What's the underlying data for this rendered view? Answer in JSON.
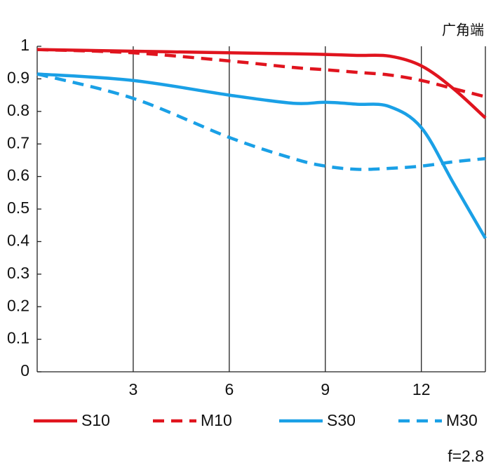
{
  "chart_data": {
    "type": "line",
    "title": "广角端",
    "note": "f=2.8",
    "x": [
      0,
      3,
      6,
      8,
      9,
      10,
      11,
      12,
      13,
      14
    ],
    "series": [
      {
        "name": "S10",
        "color": "#e0141e",
        "dashed": false,
        "values": [
          0.99,
          0.985,
          0.98,
          0.977,
          0.975,
          0.972,
          0.97,
          0.94,
          0.87,
          0.78
        ]
      },
      {
        "name": "M10",
        "color": "#e0141e",
        "dashed": true,
        "values": [
          0.99,
          0.98,
          0.955,
          0.935,
          0.928,
          0.92,
          0.912,
          0.895,
          0.87,
          0.845
        ]
      },
      {
        "name": "S30",
        "color": "#1aa0e6",
        "dashed": false,
        "values": [
          0.915,
          0.895,
          0.85,
          0.825,
          0.828,
          0.822,
          0.815,
          0.75,
          0.58,
          0.41
        ]
      },
      {
        "name": "M30",
        "color": "#1aa0e6",
        "dashed": true,
        "values": [
          0.915,
          0.84,
          0.72,
          0.655,
          0.632,
          0.622,
          0.625,
          0.632,
          0.645,
          0.655
        ]
      }
    ],
    "xlim": [
      0,
      14
    ],
    "xticks": [
      3,
      6,
      9,
      12
    ],
    "ylim": [
      0,
      1
    ],
    "yticks": [
      0,
      0.1,
      0.2,
      0.3,
      0.4,
      0.5,
      0.6,
      0.7,
      0.8,
      0.9,
      1
    ],
    "grid": true
  }
}
